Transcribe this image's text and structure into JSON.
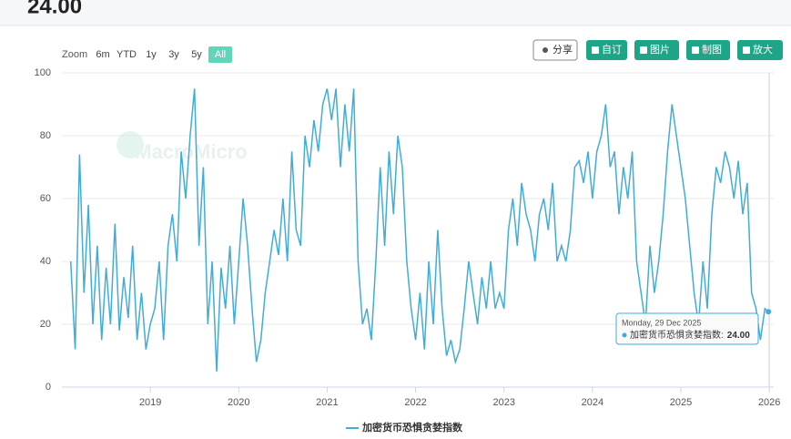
{
  "header": {
    "value": "24.00"
  },
  "toolbar": {
    "range_label": "Zoom",
    "ranges": [
      "6m",
      "YTD",
      "1y",
      "3y",
      "5y",
      "All"
    ],
    "active_range": "All",
    "buttons": [
      "分享",
      "自订",
      "图片",
      "制图",
      "放大"
    ]
  },
  "watermark": "MacroMicro",
  "chart_data": {
    "type": "line",
    "x": [
      2018.1,
      2018.15,
      2018.2,
      2018.25,
      2018.3,
      2018.35,
      2018.4,
      2018.45,
      2018.5,
      2018.55,
      2018.6,
      2018.65,
      2018.7,
      2018.75,
      2018.8,
      2018.85,
      2018.9,
      2018.95,
      2019.0,
      2019.05,
      2019.1,
      2019.15,
      2019.2,
      2019.25,
      2019.3,
      2019.35,
      2019.4,
      2019.45,
      2019.5,
      2019.55,
      2019.6,
      2019.65,
      2019.7,
      2019.75,
      2019.8,
      2019.85,
      2019.9,
      2019.95,
      2020.0,
      2020.05,
      2020.1,
      2020.15,
      2020.2,
      2020.25,
      2020.3,
      2020.35,
      2020.4,
      2020.45,
      2020.5,
      2020.55,
      2020.6,
      2020.65,
      2020.7,
      2020.75,
      2020.8,
      2020.85,
      2020.9,
      2020.95,
      2021.0,
      2021.05,
      2021.1,
      2021.15,
      2021.2,
      2021.25,
      2021.3,
      2021.35,
      2021.4,
      2021.45,
      2021.5,
      2021.55,
      2021.6,
      2021.65,
      2021.7,
      2021.75,
      2021.8,
      2021.85,
      2021.9,
      2021.95,
      2022.0,
      2022.05,
      2022.1,
      2022.15,
      2022.2,
      2022.25,
      2022.3,
      2022.35,
      2022.4,
      2022.45,
      2022.5,
      2022.55,
      2022.6,
      2022.65,
      2022.7,
      2022.75,
      2022.8,
      2022.85,
      2022.9,
      2022.95,
      2023.0,
      2023.05,
      2023.1,
      2023.15,
      2023.2,
      2023.25,
      2023.3,
      2023.35,
      2023.4,
      2023.45,
      2023.5,
      2023.55,
      2023.6,
      2023.65,
      2023.7,
      2023.75,
      2023.8,
      2023.85,
      2023.9,
      2023.95,
      2024.0,
      2024.05,
      2024.1,
      2024.15,
      2024.2,
      2024.25,
      2024.3,
      2024.35,
      2024.4,
      2024.45,
      2024.5,
      2024.55,
      2024.6,
      2024.65,
      2024.7,
      2024.75,
      2024.8,
      2024.85,
      2024.9,
      2024.95,
      2025.0,
      2025.05,
      2025.1,
      2025.15,
      2025.2,
      2025.25,
      2025.3,
      2025.35,
      2025.4,
      2025.45,
      2025.5,
      2025.55,
      2025.6,
      2025.65,
      2025.7,
      2025.75,
      2025.8,
      2025.85,
      2025.9,
      2025.95,
      2025.99
    ],
    "series": [
      {
        "name": "加密货币恐惧贪婪指数",
        "color": "#3fadd8",
        "values": [
          40,
          12,
          74,
          30,
          58,
          20,
          45,
          15,
          38,
          20,
          52,
          18,
          35,
          22,
          45,
          15,
          30,
          12,
          20,
          25,
          40,
          15,
          45,
          55,
          40,
          75,
          60,
          80,
          95,
          45,
          70,
          20,
          40,
          5,
          38,
          25,
          45,
          20,
          40,
          60,
          45,
          25,
          8,
          15,
          30,
          40,
          50,
          42,
          60,
          40,
          75,
          50,
          45,
          80,
          70,
          85,
          75,
          90,
          95,
          85,
          95,
          70,
          90,
          75,
          95,
          40,
          20,
          25,
          15,
          40,
          70,
          45,
          75,
          55,
          80,
          70,
          40,
          25,
          15,
          30,
          12,
          40,
          20,
          50,
          25,
          10,
          15,
          8,
          12,
          25,
          40,
          30,
          20,
          35,
          25,
          40,
          25,
          30,
          25,
          50,
          60,
          45,
          65,
          55,
          50,
          40,
          55,
          60,
          50,
          65,
          40,
          45,
          40,
          50,
          70,
          72,
          65,
          75,
          60,
          75,
          80,
          90,
          70,
          75,
          55,
          70,
          60,
          75,
          40,
          30,
          20,
          45,
          30,
          40,
          55,
          75,
          90,
          80,
          70,
          60,
          45,
          30,
          20,
          40,
          25,
          55,
          70,
          65,
          75,
          70,
          60,
          72,
          55,
          65,
          30,
          25,
          15,
          25,
          24
        ]
      }
    ],
    "xlim": [
      2018.0,
      2026.05
    ],
    "xticks": [
      2019,
      2020,
      2021,
      2022,
      2023,
      2024,
      2025,
      2026
    ],
    "ylim": [
      0,
      100
    ],
    "yticks": [
      0,
      20,
      40,
      60,
      80,
      100
    ],
    "grid": true,
    "legend": "bottom",
    "tooltip": {
      "date": "Monday, 29 Dec 2025",
      "label": "加密货币恐惧贪婪指数:",
      "value": "24.00"
    }
  }
}
